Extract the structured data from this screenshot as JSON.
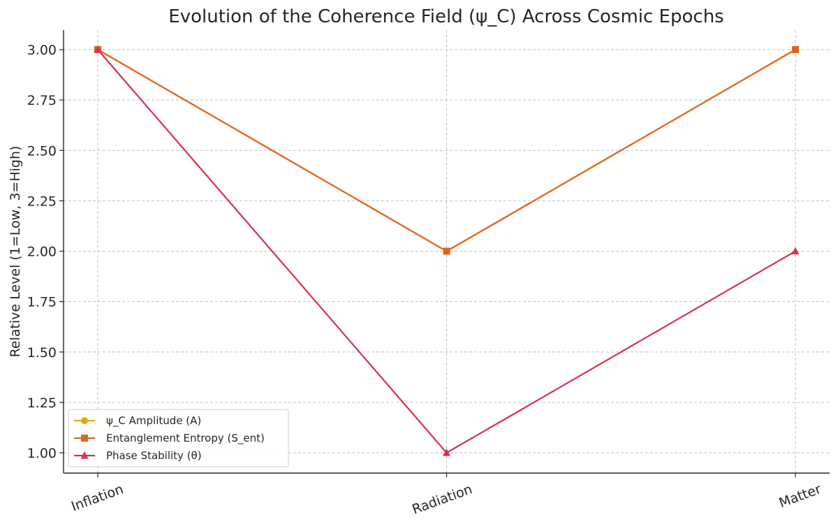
{
  "chart_data": {
    "type": "line",
    "title": "Evolution of the Coherence Field (ψ_C) Across Cosmic Epochs",
    "xlabel": "",
    "ylabel": "Relative Level (1=Low, 3=High)",
    "categories": [
      "Inflation",
      "Radiation",
      "Matter"
    ],
    "ylim": [
      0.9,
      3.1
    ],
    "yticks": [
      1.0,
      1.25,
      1.5,
      1.75,
      2.0,
      2.25,
      2.5,
      2.75,
      3.0
    ],
    "ytick_labels": [
      "1.00",
      "1.25",
      "1.50",
      "1.75",
      "2.00",
      "2.25",
      "2.50",
      "2.75",
      "3.00"
    ],
    "grid": true,
    "legend_position": "lower-left",
    "series": [
      {
        "name": "ψ_C Amplitude (A)",
        "values": [
          3,
          2,
          3
        ],
        "color": "#E8A70C",
        "marker": "circle"
      },
      {
        "name": "Entanglement Entropy (S_ent)",
        "values": [
          3,
          2,
          3
        ],
        "color": "#E0651E",
        "marker": "square"
      },
      {
        "name": "Phase Stability (θ)",
        "values": [
          3,
          1,
          2
        ],
        "color": "#D6304F",
        "marker": "triangle"
      }
    ]
  }
}
